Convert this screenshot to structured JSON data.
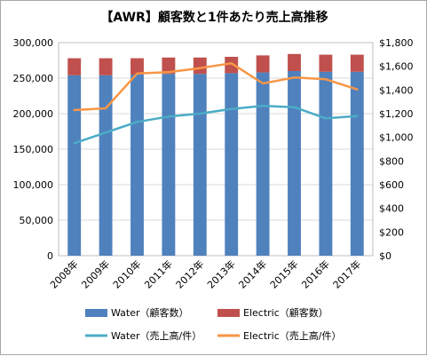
{
  "chart_data": {
    "type": "bar",
    "title": "【AWR】顧客数と1件あたり売上高推移",
    "categories": [
      "2008年",
      "2009年",
      "2010年",
      "2011年",
      "2012年",
      "2013年",
      "2014年",
      "2015年",
      "2016年",
      "2017年"
    ],
    "bar_series": [
      {
        "name": "Water（顧客数）",
        "axis": "left",
        "color": "#4f81bd",
        "values": [
          254000,
          254000,
          255000,
          256000,
          256000,
          257000,
          258000,
          260000,
          259000,
          259000
        ]
      },
      {
        "name": "Electric（顧客数）",
        "axis": "left",
        "color": "#c0504d",
        "values": [
          24000,
          24000,
          23000,
          23000,
          23000,
          23000,
          24000,
          24000,
          24000,
          24000
        ]
      }
    ],
    "line_series": [
      {
        "name": "Water（売上高/件）",
        "axis": "right",
        "color": "#4bacc6",
        "values": [
          950,
          1040,
          1130,
          1175,
          1200,
          1240,
          1265,
          1255,
          1160,
          1180
        ]
      },
      {
        "name": "Electric（売上高/件）",
        "axis": "right",
        "color": "#f79646",
        "values": [
          1230,
          1245,
          1540,
          1550,
          1585,
          1625,
          1455,
          1505,
          1490,
          1405
        ]
      }
    ],
    "stacked": true,
    "left_axis": {
      "min": 0,
      "max": 300000,
      "step": 50000,
      "tick_labels": [
        "0",
        "50,000",
        "100,000",
        "150,000",
        "200,000",
        "250,000",
        "300,000"
      ]
    },
    "right_axis": {
      "min": 0,
      "max": 1800,
      "step": 200,
      "tick_labels": [
        "$0",
        "$200",
        "$400",
        "$600",
        "$800",
        "$1,000",
        "$1,200",
        "$1,400",
        "$1,600",
        "$1,800"
      ]
    },
    "grid": true,
    "legend_position": "bottom"
  }
}
